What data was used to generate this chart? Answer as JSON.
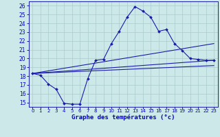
{
  "title": "Graphe des températures (°c)",
  "bg_color": "#cce8e8",
  "line_color": "#1a1aaa",
  "grid_color": "#aacccc",
  "axis_label_color": "#0000cc",
  "xlim": [
    -0.5,
    23.5
  ],
  "ylim": [
    14.5,
    26.5
  ],
  "xticks": [
    0,
    1,
    2,
    3,
    4,
    5,
    6,
    7,
    8,
    9,
    10,
    11,
    12,
    13,
    14,
    15,
    16,
    17,
    18,
    19,
    20,
    21,
    22,
    23
  ],
  "yticks": [
    15,
    16,
    17,
    18,
    19,
    20,
    21,
    22,
    23,
    24,
    25,
    26
  ],
  "curve1_x": [
    0,
    1,
    2,
    3,
    4,
    5,
    6,
    7,
    8,
    9,
    10,
    11,
    12,
    13,
    14,
    15,
    16,
    17,
    18,
    19,
    20,
    21,
    22,
    23
  ],
  "curve1_y": [
    18.3,
    18.1,
    17.1,
    16.5,
    14.9,
    14.8,
    14.8,
    17.7,
    19.8,
    19.9,
    21.7,
    23.1,
    24.7,
    25.9,
    25.4,
    24.7,
    23.1,
    23.3,
    21.7,
    20.9,
    20.0,
    19.9,
    19.8,
    19.8
  ],
  "curve2_x": [
    0,
    23
  ],
  "curve2_y": [
    18.3,
    21.7
  ],
  "curve3_x": [
    0,
    23
  ],
  "curve3_y": [
    18.3,
    19.8
  ],
  "curve4_x": [
    0,
    23
  ],
  "curve4_y": [
    18.3,
    19.2
  ],
  "figwidth": 3.2,
  "figheight": 2.0,
  "dpi": 100
}
